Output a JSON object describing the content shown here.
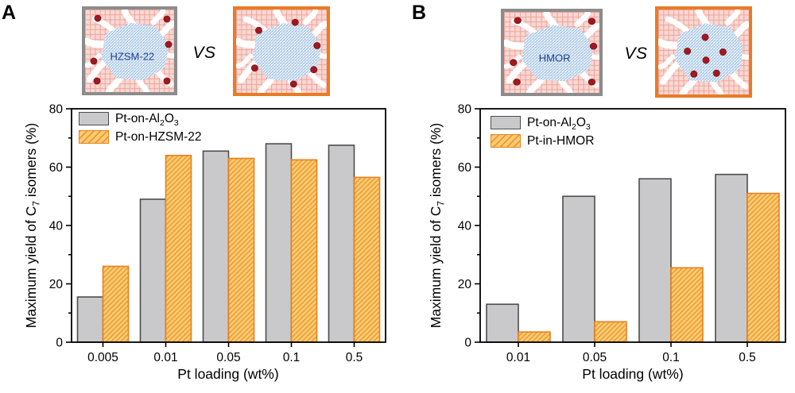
{
  "panels": [
    {
      "label": "A",
      "vs_label": "VS",
      "schematics": [
        {
          "zeolite_label": "HZSM-22",
          "frame": "gray",
          "pt_location": "matrix"
        },
        {
          "zeolite_label": "",
          "frame": "orange",
          "pt_location": "surface"
        }
      ]
    },
    {
      "label": "B",
      "vs_label": "VS",
      "schematics": [
        {
          "zeolite_label": "HMOR",
          "frame": "gray",
          "pt_location": "matrix"
        },
        {
          "zeolite_label": "",
          "frame": "orange",
          "pt_location": "inside"
        }
      ]
    }
  ],
  "chart_data": [
    {
      "type": "bar",
      "title": "",
      "categories": [
        "0.005",
        "0.01",
        "0.05",
        "0.1",
        "0.5"
      ],
      "series": [
        {
          "name": "Pt-on-Al~2~O~3~",
          "style": "gray-solid",
          "values": [
            15.5,
            49,
            65.5,
            68,
            67.5
          ]
        },
        {
          "name": "Pt-on-HZSM-22",
          "style": "orange-hatch",
          "values": [
            26,
            64,
            63,
            62.5,
            56.5
          ]
        }
      ],
      "xlabel": "Pt loading (wt%)",
      "ylabel": "Maximum yield of C~7~ isomers (%)",
      "ylim": [
        0,
        80
      ],
      "ytick_step": 20,
      "yminor_step": 10,
      "grid": false,
      "legend_position": "top-left"
    },
    {
      "type": "bar",
      "title": "",
      "categories": [
        "0.01",
        "0.05",
        "0.1",
        "0.5"
      ],
      "series": [
        {
          "name": "Pt-on-Al~2~O~3~",
          "style": "gray-solid",
          "values": [
            13,
            50,
            56,
            57.5
          ]
        },
        {
          "name": "Pt-in-HMOR",
          "style": "orange-hatch",
          "values": [
            3.5,
            7,
            25.5,
            51
          ]
        }
      ],
      "xlabel": "Pt loading (wt%)",
      "ylabel": "Maximum yield of C~7~ isomers (%)",
      "ylim": [
        0,
        80
      ],
      "ytick_step": 20,
      "yminor_step": 10,
      "grid": false,
      "legend_position": "top-left"
    }
  ],
  "colors": {
    "gray_fill": "#C9C9CB",
    "gray_border": "#4D4D4D",
    "orange_fill": "#FCCB71",
    "orange_hatch": "#EA9A33",
    "orange_border": "#E88020",
    "frame_gray": "#8C8C8C",
    "frame_orange": "#EA7A24",
    "matrix_pink": "#F8D8D3",
    "matrix_grid": "#EFA49B",
    "channel_white": "#FFFFFF",
    "zeolite_stripe": "#A5C5E5",
    "zeolite_text": "#1B3F93",
    "pt_dot": "#A21820",
    "axis": "#000000"
  }
}
